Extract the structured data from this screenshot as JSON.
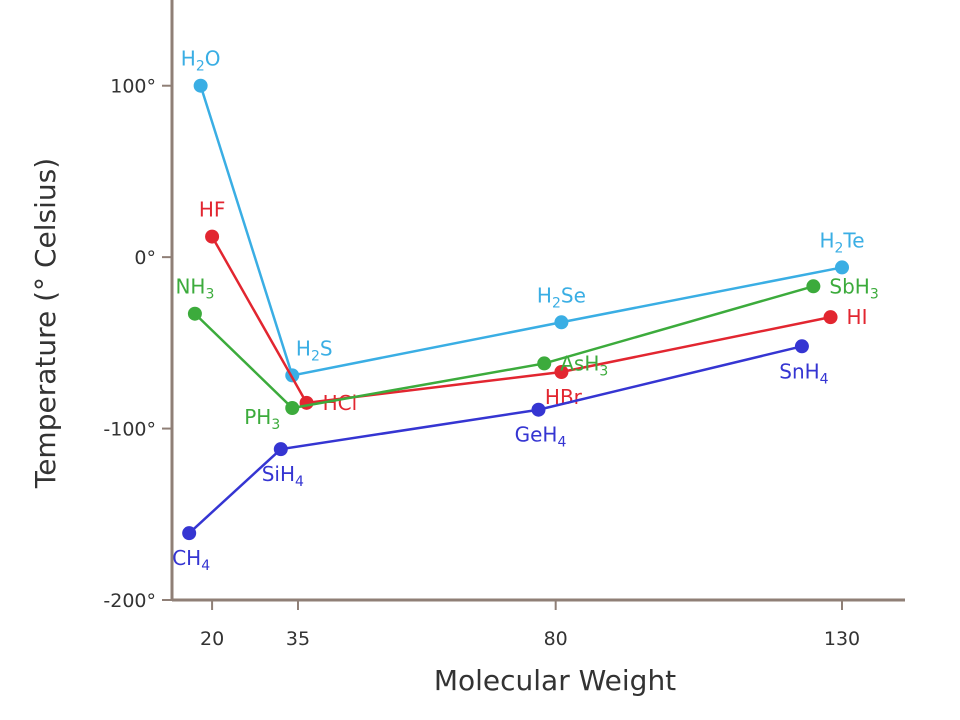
{
  "chart_data": {
    "type": "line",
    "title": "",
    "xlabel": "Molecular Weight",
    "ylabel": "Temperature (° Celsius)",
    "xlim": [
      13,
      141
    ],
    "ylim": [
      -200,
      150
    ],
    "xticks": [
      20,
      35,
      80,
      130
    ],
    "yticks": [
      100,
      0,
      -100,
      -200
    ],
    "ytick_labels": [
      "100°",
      "0°",
      "-100°",
      "-200°"
    ],
    "grid": false,
    "legend": "none",
    "series": [
      {
        "color": "#3aaee4",
        "points": [
          {
            "x": 18,
            "y": 100,
            "label": "H2O",
            "main": "H",
            "sub": "2",
            "tail": "O",
            "pos": "above"
          },
          {
            "x": 34,
            "y": -69,
            "label": "H2S",
            "main": "H",
            "sub": "2",
            "tail": "S",
            "pos": "above-right"
          },
          {
            "x": 81,
            "y": -38,
            "label": "H2Se",
            "main": "H",
            "sub": "2",
            "tail": "Se",
            "pos": "above"
          },
          {
            "x": 130,
            "y": -6,
            "label": "H2Te",
            "main": "H",
            "sub": "2",
            "tail": "Te",
            "pos": "above"
          }
        ]
      },
      {
        "color": "#e22630",
        "points": [
          {
            "x": 20,
            "y": 12,
            "label": "HF",
            "main": "HF",
            "sub": "",
            "tail": "",
            "pos": "above"
          },
          {
            "x": 36.5,
            "y": -85,
            "label": "HCl",
            "main": "HCl",
            "sub": "",
            "tail": "",
            "pos": "right"
          },
          {
            "x": 81,
            "y": -67,
            "label": "HBr",
            "main": "HBr",
            "sub": "",
            "tail": "",
            "pos": "below"
          },
          {
            "x": 128,
            "y": -35,
            "label": "HI",
            "main": "HI",
            "sub": "",
            "tail": "",
            "pos": "right"
          }
        ]
      },
      {
        "color": "#3cab3c",
        "points": [
          {
            "x": 17,
            "y": -33,
            "label": "NH3",
            "main": "NH",
            "sub": "3",
            "tail": "",
            "pos": "above"
          },
          {
            "x": 34,
            "y": -88,
            "label": "PH3",
            "main": "PH",
            "sub": "3",
            "tail": "",
            "pos": "left"
          },
          {
            "x": 78,
            "y": -62,
            "label": "AsH3",
            "main": "AsH",
            "sub": "3",
            "tail": "",
            "pos": "right"
          },
          {
            "x": 125,
            "y": -17,
            "label": "SbH3",
            "main": "SbH",
            "sub": "3",
            "tail": "",
            "pos": "right"
          }
        ]
      },
      {
        "color": "#3535d2",
        "points": [
          {
            "x": 16,
            "y": -161,
            "label": "CH4",
            "main": "CH",
            "sub": "4",
            "tail": "",
            "pos": "below"
          },
          {
            "x": 32,
            "y": -112,
            "label": "SiH4",
            "main": "SiH",
            "sub": "4",
            "tail": "",
            "pos": "below"
          },
          {
            "x": 77,
            "y": -89,
            "label": "GeH4",
            "main": "GeH",
            "sub": "4",
            "tail": "",
            "pos": "below"
          },
          {
            "x": 123,
            "y": -52,
            "label": "SnH4",
            "main": "SnH",
            "sub": "4",
            "tail": "",
            "pos": "below"
          }
        ]
      }
    ]
  }
}
